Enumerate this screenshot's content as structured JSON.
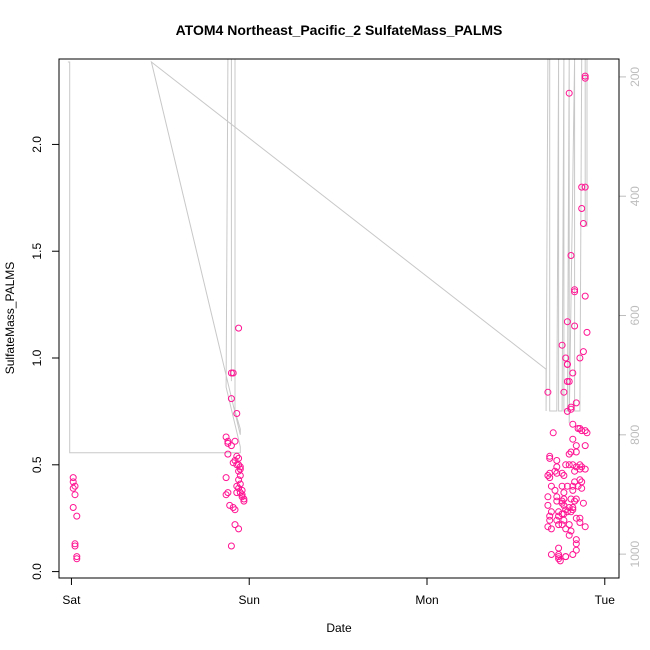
{
  "colors": {
    "points": "#ff1493",
    "pressure_line": "#c8c8c8",
    "right_axis": "#bdbdbd"
  },
  "chart_data": {
    "type": "scatter",
    "title": "ATOM4 Northeast_Pacific_2 SulfateMass_PALMS",
    "xlabel": "Date",
    "ylabel": "SulfateMass_PALMS",
    "x_units": "days since Saturday 00:00",
    "xlim": [
      0,
      3.05
    ],
    "ylim": [
      0,
      2.4
    ],
    "x_ticks": [
      {
        "value": 0.05,
        "label": "Sat"
      },
      {
        "value": 1.05,
        "label": "Sun"
      },
      {
        "value": 2.05,
        "label": "Mon"
      },
      {
        "value": 3.05,
        "label": "Tue"
      }
    ],
    "y_ticks": [
      0.0,
      0.5,
      1.0,
      1.5,
      2.0
    ],
    "y_tick_labels": [
      "0.0",
      "0.5",
      "1.0",
      "1.5",
      "2.0"
    ],
    "right_axis": {
      "label": "",
      "ticks": [
        200,
        400,
        600,
        800,
        1000
      ],
      "tick_labels": [
        "200",
        "400",
        "600",
        "800",
        "1000"
      ],
      "range_top_to_bottom": [
        170,
        1040
      ],
      "inverted": true
    },
    "series": [
      {
        "name": "",
        "values": [
          [
            0.06,
            0.44
          ],
          [
            0.06,
            0.42
          ],
          [
            0.07,
            0.4
          ],
          [
            0.06,
            0.39
          ],
          [
            0.07,
            0.36
          ],
          [
            0.06,
            0.3
          ],
          [
            0.08,
            0.26
          ],
          [
            0.07,
            0.13
          ],
          [
            0.07,
            0.12
          ],
          [
            0.08,
            0.07
          ],
          [
            0.08,
            0.06
          ],
          [
            0.92,
            0.63
          ],
          [
            0.93,
            0.61
          ],
          [
            0.93,
            0.6
          ],
          [
            0.95,
            0.59
          ],
          [
            0.93,
            0.55
          ],
          [
            0.92,
            0.44
          ],
          [
            0.93,
            0.37
          ],
          [
            0.92,
            0.36
          ],
          [
            0.94,
            0.31
          ],
          [
            0.95,
            0.12
          ],
          [
            0.95,
            0.93
          ],
          [
            0.96,
            0.93
          ],
          [
            0.95,
            0.81
          ],
          [
            0.99,
            1.14
          ],
          [
            0.98,
            0.74
          ],
          [
            0.97,
            0.61
          ],
          [
            0.98,
            0.54
          ],
          [
            0.99,
            0.53
          ],
          [
            0.97,
            0.52
          ],
          [
            0.96,
            0.51
          ],
          [
            0.98,
            0.5
          ],
          [
            0.99,
            0.5
          ],
          [
            1.0,
            0.49
          ],
          [
            1.0,
            0.48
          ],
          [
            0.99,
            0.47
          ],
          [
            1.0,
            0.45
          ],
          [
            0.99,
            0.43
          ],
          [
            1.0,
            0.41
          ],
          [
            0.98,
            0.4
          ],
          [
            0.99,
            0.39
          ],
          [
            1.01,
            0.38
          ],
          [
            1.0,
            0.37
          ],
          [
            0.98,
            0.37
          ],
          [
            1.01,
            0.36
          ],
          [
            1.01,
            0.35
          ],
          [
            1.02,
            0.34
          ],
          [
            1.02,
            0.33
          ],
          [
            0.97,
            0.29
          ],
          [
            0.97,
            0.22
          ],
          [
            0.99,
            0.2
          ],
          [
            0.96,
            0.3
          ],
          [
            2.73,
            0.84
          ],
          [
            2.74,
            0.54
          ],
          [
            2.74,
            0.53
          ],
          [
            2.74,
            0.46
          ],
          [
            2.73,
            0.45
          ],
          [
            2.74,
            0.44
          ],
          [
            2.75,
            0.4
          ],
          [
            2.73,
            0.35
          ],
          [
            2.73,
            0.31
          ],
          [
            2.75,
            0.28
          ],
          [
            2.74,
            0.26
          ],
          [
            2.74,
            0.24
          ],
          [
            2.73,
            0.21
          ],
          [
            2.75,
            0.2
          ],
          [
            2.75,
            0.08
          ],
          [
            2.76,
            0.65
          ],
          [
            2.78,
            0.52
          ],
          [
            2.78,
            0.49
          ],
          [
            2.77,
            0.47
          ],
          [
            2.78,
            0.46
          ],
          [
            2.77,
            0.38
          ],
          [
            2.78,
            0.35
          ],
          [
            2.78,
            0.33
          ],
          [
            2.79,
            0.28
          ],
          [
            2.79,
            0.26
          ],
          [
            2.78,
            0.24
          ],
          [
            2.79,
            0.22
          ],
          [
            2.79,
            0.08
          ],
          [
            2.79,
            0.07
          ],
          [
            2.79,
            0.06
          ],
          [
            2.8,
            0.05
          ],
          [
            2.79,
            0.11
          ],
          [
            2.81,
            1.06
          ],
          [
            2.82,
            0.84
          ],
          [
            2.83,
            0.5
          ],
          [
            2.81,
            0.46
          ],
          [
            2.82,
            0.45
          ],
          [
            2.81,
            0.4
          ],
          [
            2.82,
            0.37
          ],
          [
            2.82,
            0.34
          ],
          [
            2.81,
            0.33
          ],
          [
            2.81,
            0.32
          ],
          [
            2.82,
            0.31
          ],
          [
            2.83,
            0.29
          ],
          [
            2.82,
            0.27
          ],
          [
            2.81,
            0.27
          ],
          [
            2.82,
            0.24
          ],
          [
            2.81,
            0.22
          ],
          [
            2.83,
            0.2
          ],
          [
            2.83,
            0.07
          ],
          [
            2.83,
            1.0
          ],
          [
            2.84,
            0.97
          ],
          [
            2.84,
            0.97
          ],
          [
            2.84,
            0.89
          ],
          [
            2.85,
            0.89
          ],
          [
            2.84,
            0.75
          ],
          [
            2.85,
            0.55
          ],
          [
            2.85,
            0.5
          ],
          [
            2.84,
            0.4
          ],
          [
            2.85,
            0.3
          ],
          [
            2.84,
            0.28
          ],
          [
            2.86,
            0.28
          ],
          [
            2.85,
            0.22
          ],
          [
            2.85,
            0.17
          ],
          [
            2.83,
            0.07
          ],
          [
            2.85,
            2.24
          ],
          [
            2.84,
            1.17
          ],
          [
            2.86,
            1.48
          ],
          [
            2.87,
            0.93
          ],
          [
            2.86,
            0.77
          ],
          [
            2.86,
            0.76
          ],
          [
            2.87,
            0.69
          ],
          [
            2.87,
            0.62
          ],
          [
            2.86,
            0.56
          ],
          [
            2.87,
            0.5
          ],
          [
            2.87,
            0.4
          ],
          [
            2.87,
            0.38
          ],
          [
            2.86,
            0.34
          ],
          [
            2.87,
            0.3
          ],
          [
            2.87,
            0.29
          ],
          [
            2.86,
            0.19
          ],
          [
            2.87,
            0.08
          ],
          [
            2.88,
            1.32
          ],
          [
            2.88,
            1.31
          ],
          [
            2.88,
            1.15
          ],
          [
            2.89,
            0.79
          ],
          [
            2.89,
            0.59
          ],
          [
            2.89,
            0.56
          ],
          [
            2.89,
            0.49
          ],
          [
            2.88,
            0.47
          ],
          [
            2.88,
            0.42
          ],
          [
            2.89,
            0.34
          ],
          [
            2.88,
            0.33
          ],
          [
            2.89,
            0.25
          ],
          [
            2.89,
            0.15
          ],
          [
            2.89,
            0.13
          ],
          [
            2.89,
            0.1
          ],
          [
            2.91,
            1.0
          ],
          [
            2.9,
            0.67
          ],
          [
            2.91,
            0.67
          ],
          [
            2.92,
            0.66
          ],
          [
            2.91,
            0.5
          ],
          [
            2.92,
            0.49
          ],
          [
            2.91,
            0.48
          ],
          [
            2.91,
            0.43
          ],
          [
            2.92,
            0.42
          ],
          [
            2.9,
            0.4
          ],
          [
            2.92,
            0.39
          ],
          [
            2.91,
            0.25
          ],
          [
            2.91,
            0.23
          ],
          [
            2.92,
            1.8
          ],
          [
            2.92,
            1.7
          ],
          [
            2.93,
            1.63
          ],
          [
            2.93,
            1.03
          ],
          [
            2.94,
            2.31
          ],
          [
            2.94,
            2.32
          ],
          [
            2.94,
            1.8
          ],
          [
            2.94,
            1.29
          ],
          [
            2.95,
            1.12
          ],
          [
            2.94,
            0.66
          ],
          [
            2.95,
            0.65
          ],
          [
            2.94,
            0.59
          ],
          [
            2.94,
            0.48
          ],
          [
            2.93,
            0.32
          ],
          [
            2.94,
            0.21
          ]
        ]
      }
    ],
    "pressure_series": {
      "name": "",
      "values": [
        [
          0.03,
          175
        ],
        [
          0.04,
          175
        ],
        [
          0.04,
          830
        ],
        [
          0.46,
          830
        ],
        [
          0.96,
          830
        ],
        [
          1.0,
          830
        ],
        [
          1.0,
          820
        ],
        [
          0.92,
          720
        ],
        [
          0.93,
          160
        ],
        [
          0.93,
          150
        ],
        [
          0.95,
          150
        ],
        [
          0.95,
          710
        ],
        [
          0.95,
          150
        ],
        [
          0.97,
          150
        ],
        [
          0.97,
          760
        ],
        [
          1.0,
          790
        ],
        [
          1.0,
          800
        ],
        [
          0.5,
          175
        ],
        [
          2.72,
          690
        ],
        [
          2.72,
          760
        ],
        [
          2.73,
          150
        ],
        [
          2.74,
          150
        ],
        [
          2.74,
          760
        ],
        [
          2.78,
          760
        ],
        [
          2.79,
          150
        ],
        [
          2.79,
          760
        ],
        [
          2.81,
          760
        ],
        [
          2.82,
          150
        ],
        [
          2.82,
          760
        ],
        [
          2.84,
          760
        ],
        [
          2.85,
          150
        ],
        [
          2.85,
          780
        ],
        [
          2.88,
          150
        ],
        [
          2.88,
          760
        ],
        [
          2.91,
          760
        ],
        [
          2.92,
          150
        ],
        [
          2.94,
          150
        ],
        [
          2.94,
          450
        ],
        [
          2.95,
          450
        ],
        [
          2.95,
          150
        ],
        [
          2.96,
          150
        ]
      ]
    },
    "grid": false,
    "legend": "none"
  }
}
